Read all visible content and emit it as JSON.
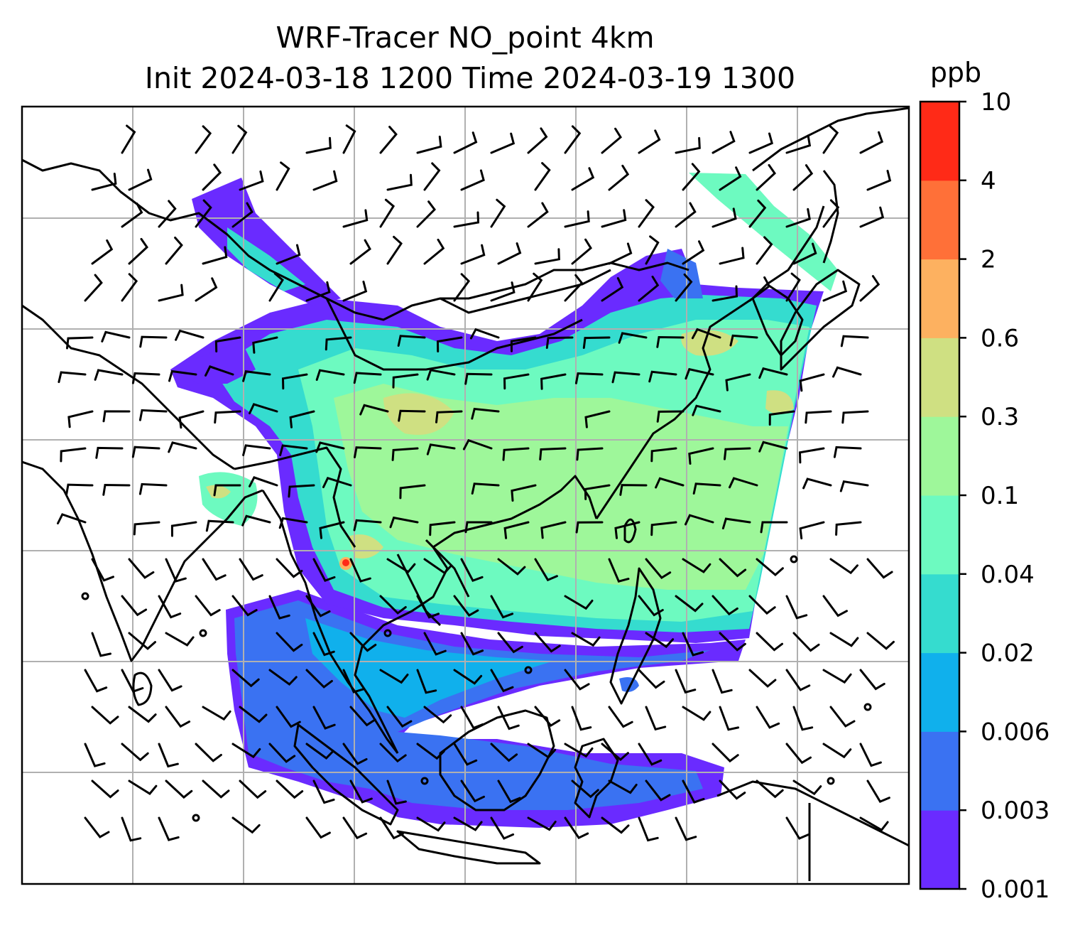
{
  "title": {
    "line1": "WRF-Tracer NO_point 4km",
    "line2": "Init 2024-03-18 1200 Time 2024-03-19 1300"
  },
  "colorbar": {
    "unit": "ppb",
    "levels": [
      "0.001",
      "0.003",
      "0.006",
      "0.02",
      "0.04",
      "0.1",
      "0.3",
      "0.6",
      "2",
      "4",
      "10"
    ],
    "colors": [
      "#6a2bff",
      "#3a72f2",
      "#10b0ec",
      "#35dccf",
      "#6dfac0",
      "#9ef79a",
      "#cfe082",
      "#fdb160",
      "#ff7038",
      "#ff2a17"
    ]
  },
  "chart_data": {
    "type": "heatmap",
    "title": "WRF-Tracer NO_point 4km\nInit 2024-03-18 1200 Time 2024-03-19 1300",
    "colorbar_label": "ppb",
    "colorbar_levels": [
      0.001,
      0.003,
      0.006,
      0.02,
      0.04,
      0.1,
      0.3,
      0.6,
      2,
      4,
      10
    ],
    "grid": true,
    "overlays": [
      "coastlines",
      "country borders",
      "wind barbs"
    ]
  }
}
